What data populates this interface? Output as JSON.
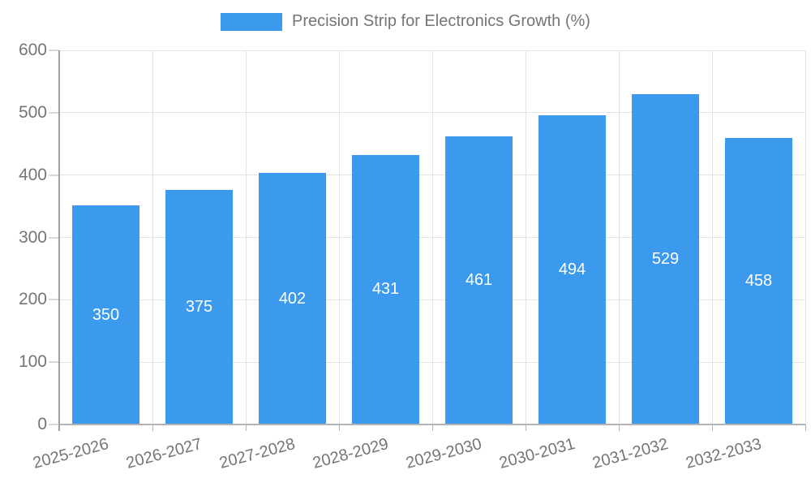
{
  "chart_data": {
    "type": "bar",
    "title": "Precision Strip for Electronics Growth (%)",
    "categories": [
      "2025-2026",
      "2026-2027",
      "2027-2028",
      "2028-2029",
      "2029-2030",
      "2030-2031",
      "2031-2032",
      "2032-2033"
    ],
    "values": [
      350,
      375,
      402,
      431,
      461,
      494,
      529,
      458
    ],
    "xlabel": "",
    "ylabel": "",
    "ylim": [
      0,
      600
    ],
    "ytick_step": 100,
    "ytick_labels": [
      "0",
      "100",
      "200",
      "300",
      "400",
      "500",
      "600"
    ],
    "grid": true,
    "legend_position": "top-center",
    "value_labels": "inside-center",
    "colors": {
      "bar": "#3b99ee",
      "value_label": "#ffffff",
      "axis_text": "#757575",
      "gridline": "#e2e2e2",
      "axis_line": "#a9a9a9"
    }
  },
  "legend": {
    "label": "Precision Strip for Electronics Growth (%)",
    "swatch_color": "#3b99ee"
  }
}
